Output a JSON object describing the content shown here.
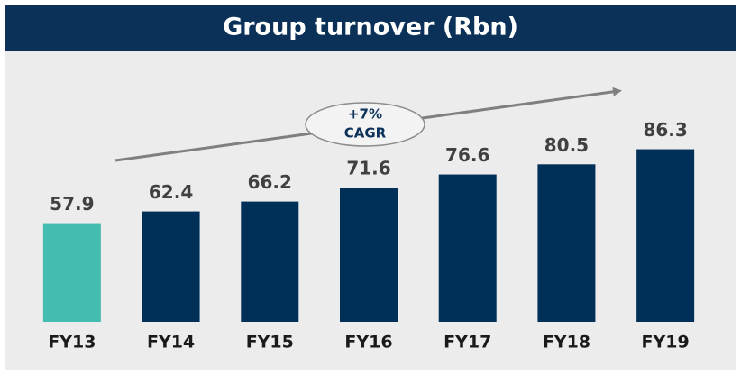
{
  "chart_data": {
    "type": "bar",
    "title": "Group turnover (Rbn)",
    "categories": [
      "FY13",
      "FY14",
      "FY15",
      "FY16",
      "FY17",
      "FY18",
      "FY19"
    ],
    "values": [
      57.9,
      62.4,
      66.2,
      71.6,
      76.6,
      80.5,
      86.3
    ],
    "colors": [
      "#45bcb0",
      "#003057",
      "#003057",
      "#003057",
      "#003057",
      "#003057",
      "#003057"
    ],
    "ylim": [
      20,
      100
    ],
    "annotation": [
      "+7%",
      "CAGR"
    ]
  }
}
